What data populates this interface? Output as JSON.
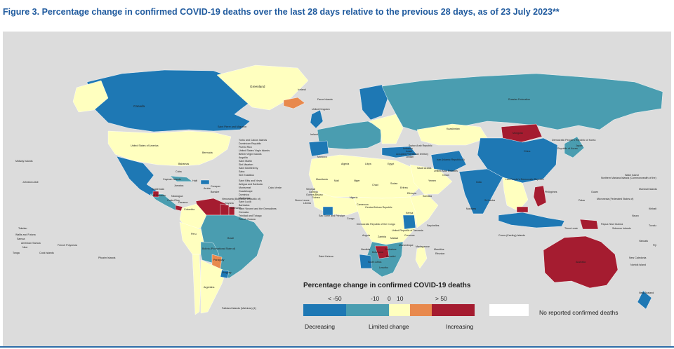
{
  "figure": {
    "title": "Figure 3. Percentage change in confirmed COVID-19 deaths over the last 28 days relative to the previous 28 days, as of 23 July 2023**"
  },
  "colors": {
    "decreasing_strong": "#1e78b4",
    "decreasing": "#4a9db0",
    "limited": "#ffffbf",
    "increasing": "#e8894d",
    "increasing_strong": "#a51c30",
    "no_data": "#ffffff",
    "water": "#dcdcdc"
  },
  "legend": {
    "title": "Percentage change in confirmed COVID-19 deaths",
    "ticks": [
      "< -50",
      "-10",
      "0",
      "10",
      "> 50"
    ],
    "captions": {
      "decreasing": "Decreasing",
      "limited": "Limited change",
      "increasing": "Increasing"
    },
    "no_reported": "No reported confirmed deaths"
  },
  "labels": {
    "greenland": "Greenland",
    "iceland": "Iceland",
    "canada": "Canada",
    "russia": "Russian Federation",
    "usa": "United States of America",
    "saint_pierre": "Saint Pierre and Miquelon",
    "bermuda": "Bermuda",
    "turks": "Turks and Caicos Islands",
    "dominican": "Dominican Republic",
    "puerto_rico": "Puerto Rico",
    "usvi": "United States Virgin Islands",
    "bvi": "British Virgin Islands",
    "anguilla": "Anguilla",
    "saint_martin": "Saint Martin",
    "sint_maarten": "Sint Maarten",
    "saint_barthelemy": "Saint Barthélemy",
    "saba": "Saba",
    "sint_eustatius": "Sint Eustatius",
    "saint_kitts": "Saint Kitts and Nevis",
    "antigua": "Antigua and Barbuda",
    "montserrat": "Montserrat",
    "guadeloupe": "Guadeloupe",
    "dominica": "Dominica",
    "martinique": "Martinique",
    "saint_lucia": "Saint Lucia",
    "barbados": "Barbados",
    "saint_vincent": "Saint Vincent and the Grenadines",
    "grenada": "Grenada",
    "trinidad": "Trinidad and Tobago",
    "french_guiana": "French Guiana",
    "cuba": "Cuba",
    "bahamas": "Bahamas",
    "cayman": "Cayman Islands",
    "haiti": "Haiti",
    "jamaica": "Jamaica",
    "guatemala": "Guatemala",
    "el_salvador": "El Salvador",
    "nicaragua": "Nicaragua",
    "costa_rica": "Costa Rica",
    "panama": "Panama",
    "aruba": "Aruba",
    "curacao": "Curaçao",
    "bonaire": "Bonaire",
    "venezuela": "Venezuela (Bolivarian Republic of)",
    "colombia": "Colombia",
    "guyana": "Guyana",
    "suriname": "Suriname",
    "peru": "Peru",
    "brazil": "Brazil",
    "bolivia": "Bolivia (Plurinational State of)",
    "paraguay": "Paraguay",
    "uruguay": "Uruguay",
    "argentina": "Argentina",
    "falklands": "Falkland Islands (Malvinas) [1]",
    "midway": "Midway Islands",
    "johnston": "Johnston Atoll",
    "tokelau": "Tokelau",
    "wallis": "Wallis and Futuna",
    "samoa": "Samoa",
    "american_samoa": "American Samoa",
    "niue": "Niue",
    "tonga": "Tonga",
    "cook": "Cook Islands",
    "french_polynesia": "French Polynesia",
    "pitcairn": "Pitcairn Islands",
    "faroe": "Faroe Islands",
    "uk": "United Kingdom",
    "ireland": "Ireland",
    "morocco": "Morocco",
    "algeria": "Algeria",
    "libya": "Libya",
    "egypt": "Egypt",
    "mauritania": "Mauritania",
    "mali": "Mali",
    "niger": "Niger",
    "chad": "Chad",
    "sudan": "Sudan",
    "eritrea": "Eritrea",
    "ethiopia": "Ethiopia",
    "somalia": "Somalia",
    "kenya": "Kenya",
    "senegal": "Senegal",
    "gambia": "Gambia",
    "guinea_bissau": "Guinea-Bissau",
    "guinea": "Guinea",
    "sierra_leone": "Sierra Leone",
    "liberia": "Liberia",
    "cabo_verde": "Cabo Verde",
    "nigeria": "Nigeria",
    "cameroon": "Cameroon",
    "car": "Central African Republic",
    "drc": "Democratic Republic of the Congo",
    "congo": "Congo",
    "sao_tome": "Sao Tome and Principe",
    "tanzania": "United Republic of Tanzania",
    "seychelles": "Seychelles",
    "comoros": "Comoros",
    "mozambique": "Mozambique",
    "madagascar": "Madagascar",
    "mauritius": "Mauritius",
    "reunion": "Réunion",
    "angola": "Angola",
    "zambia": "Zambia",
    "malawi": "Malawi",
    "namibia": "Namibia",
    "botswana": "Botswana",
    "zimbabwe": "Zimbabwe",
    "south_africa": "South Africa",
    "eswatini": "Eswatini",
    "lesotho": "Lesotho",
    "saint_helena": "Saint Helena",
    "israel": "Israel",
    "occupied_palestinian": "occupied Palestinian territory",
    "saudi_arabia": "Saudi Arabia",
    "yemen": "Yemen",
    "oman": "Oman",
    "uae": "United Arab Emirates",
    "syria": "Syrian Arab Republic",
    "jordan": "Jordan",
    "lebanon": "Lebanon",
    "iran": "Iran (Islamic Republic of)",
    "kazakhstan": "Kazakhstan",
    "mongolia": "Mongolia",
    "china": "China",
    "korea": "Republic of Korea",
    "dprk": "Democratic People's Republic of Korea",
    "japan": "Japan",
    "india": "India",
    "maldives": "Maldives",
    "sri_lanka": "Sri Lanka",
    "lao": "Lao People's Democratic Republic",
    "philippines": "Philippines",
    "timor": "Timor-Leste",
    "cocos": "Cocos (Keeling) Islands",
    "australia": "Australia",
    "png": "Papua New Guinea",
    "solomon": "Solomon Islands",
    "vanuatu": "Vanuatu",
    "fiji": "Fiji",
    "new_caledonia": "New Caledonia",
    "norfolk": "Norfolk Island",
    "new_zealand": "New Zealand",
    "palau": "Palau",
    "guam": "Guam",
    "nmi": "Northern Mariana Islands (Commonwealth of the)",
    "micronesia": "Micronesia (Federated States of)",
    "marshall": "Marshall Islands",
    "wake": "Wake Island",
    "nauru": "Nauru",
    "kiribati": "Kiribati",
    "tuvalu": "Tuvalu"
  }
}
